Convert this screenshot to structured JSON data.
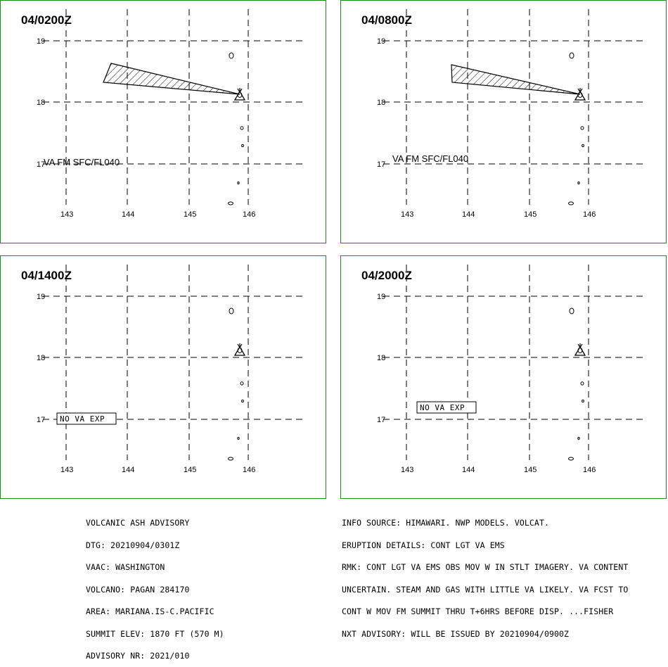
{
  "panels": [
    {
      "title": "04/0200Z",
      "label": "VA FM SFC/FL040",
      "boxed": false,
      "plume": true
    },
    {
      "title": "04/0800Z",
      "label": "VA FM SFC/FL040",
      "boxed": false,
      "plume": true
    },
    {
      "title": "04/1400Z",
      "label": "NO VA EXP",
      "boxed": true,
      "plume": false
    },
    {
      "title": "04/2000Z",
      "label": "NO VA EXP",
      "boxed": true,
      "plume": false
    }
  ],
  "map": {
    "lat_labels": [
      "19",
      "18",
      "17"
    ],
    "lon_labels": [
      "143",
      "144",
      "145",
      "146"
    ]
  },
  "advisory_left": [
    "VOLCANIC ASH ADVISORY",
    "DTG: 20210904/0301Z",
    "VAAC: WASHINGTON",
    "VOLCANO: PAGAN 284170",
    "AREA: MARIANA.IS-C.PACIFIC",
    "SUMMIT ELEV: 1870 FT (570 M)",
    "ADVISORY NR: 2021/010"
  ],
  "advisory_right": [
    "INFO SOURCE: HIMAWARI. NWP MODELS. VOLCAT.",
    "ERUPTION DETAILS: CONT LGT VA EMS",
    "RMK: CONT LGT VA EMS OBS MOV W IN STLT IMAGERY. VA CONTENT",
    "UNCERTAIN. STEAM AND GAS WITH LITTLE VA LIKELY. VA FCST TO",
    "CONT W MOV FM SUMMIT THRU T+6HRS BEFORE DISP. ...FISHER",
    "NXT ADVISORY: WILL BE ISSUED BY 20210904/0900Z"
  ],
  "colors": {
    "border": "#1a8a1a",
    "line": "#000000"
  }
}
